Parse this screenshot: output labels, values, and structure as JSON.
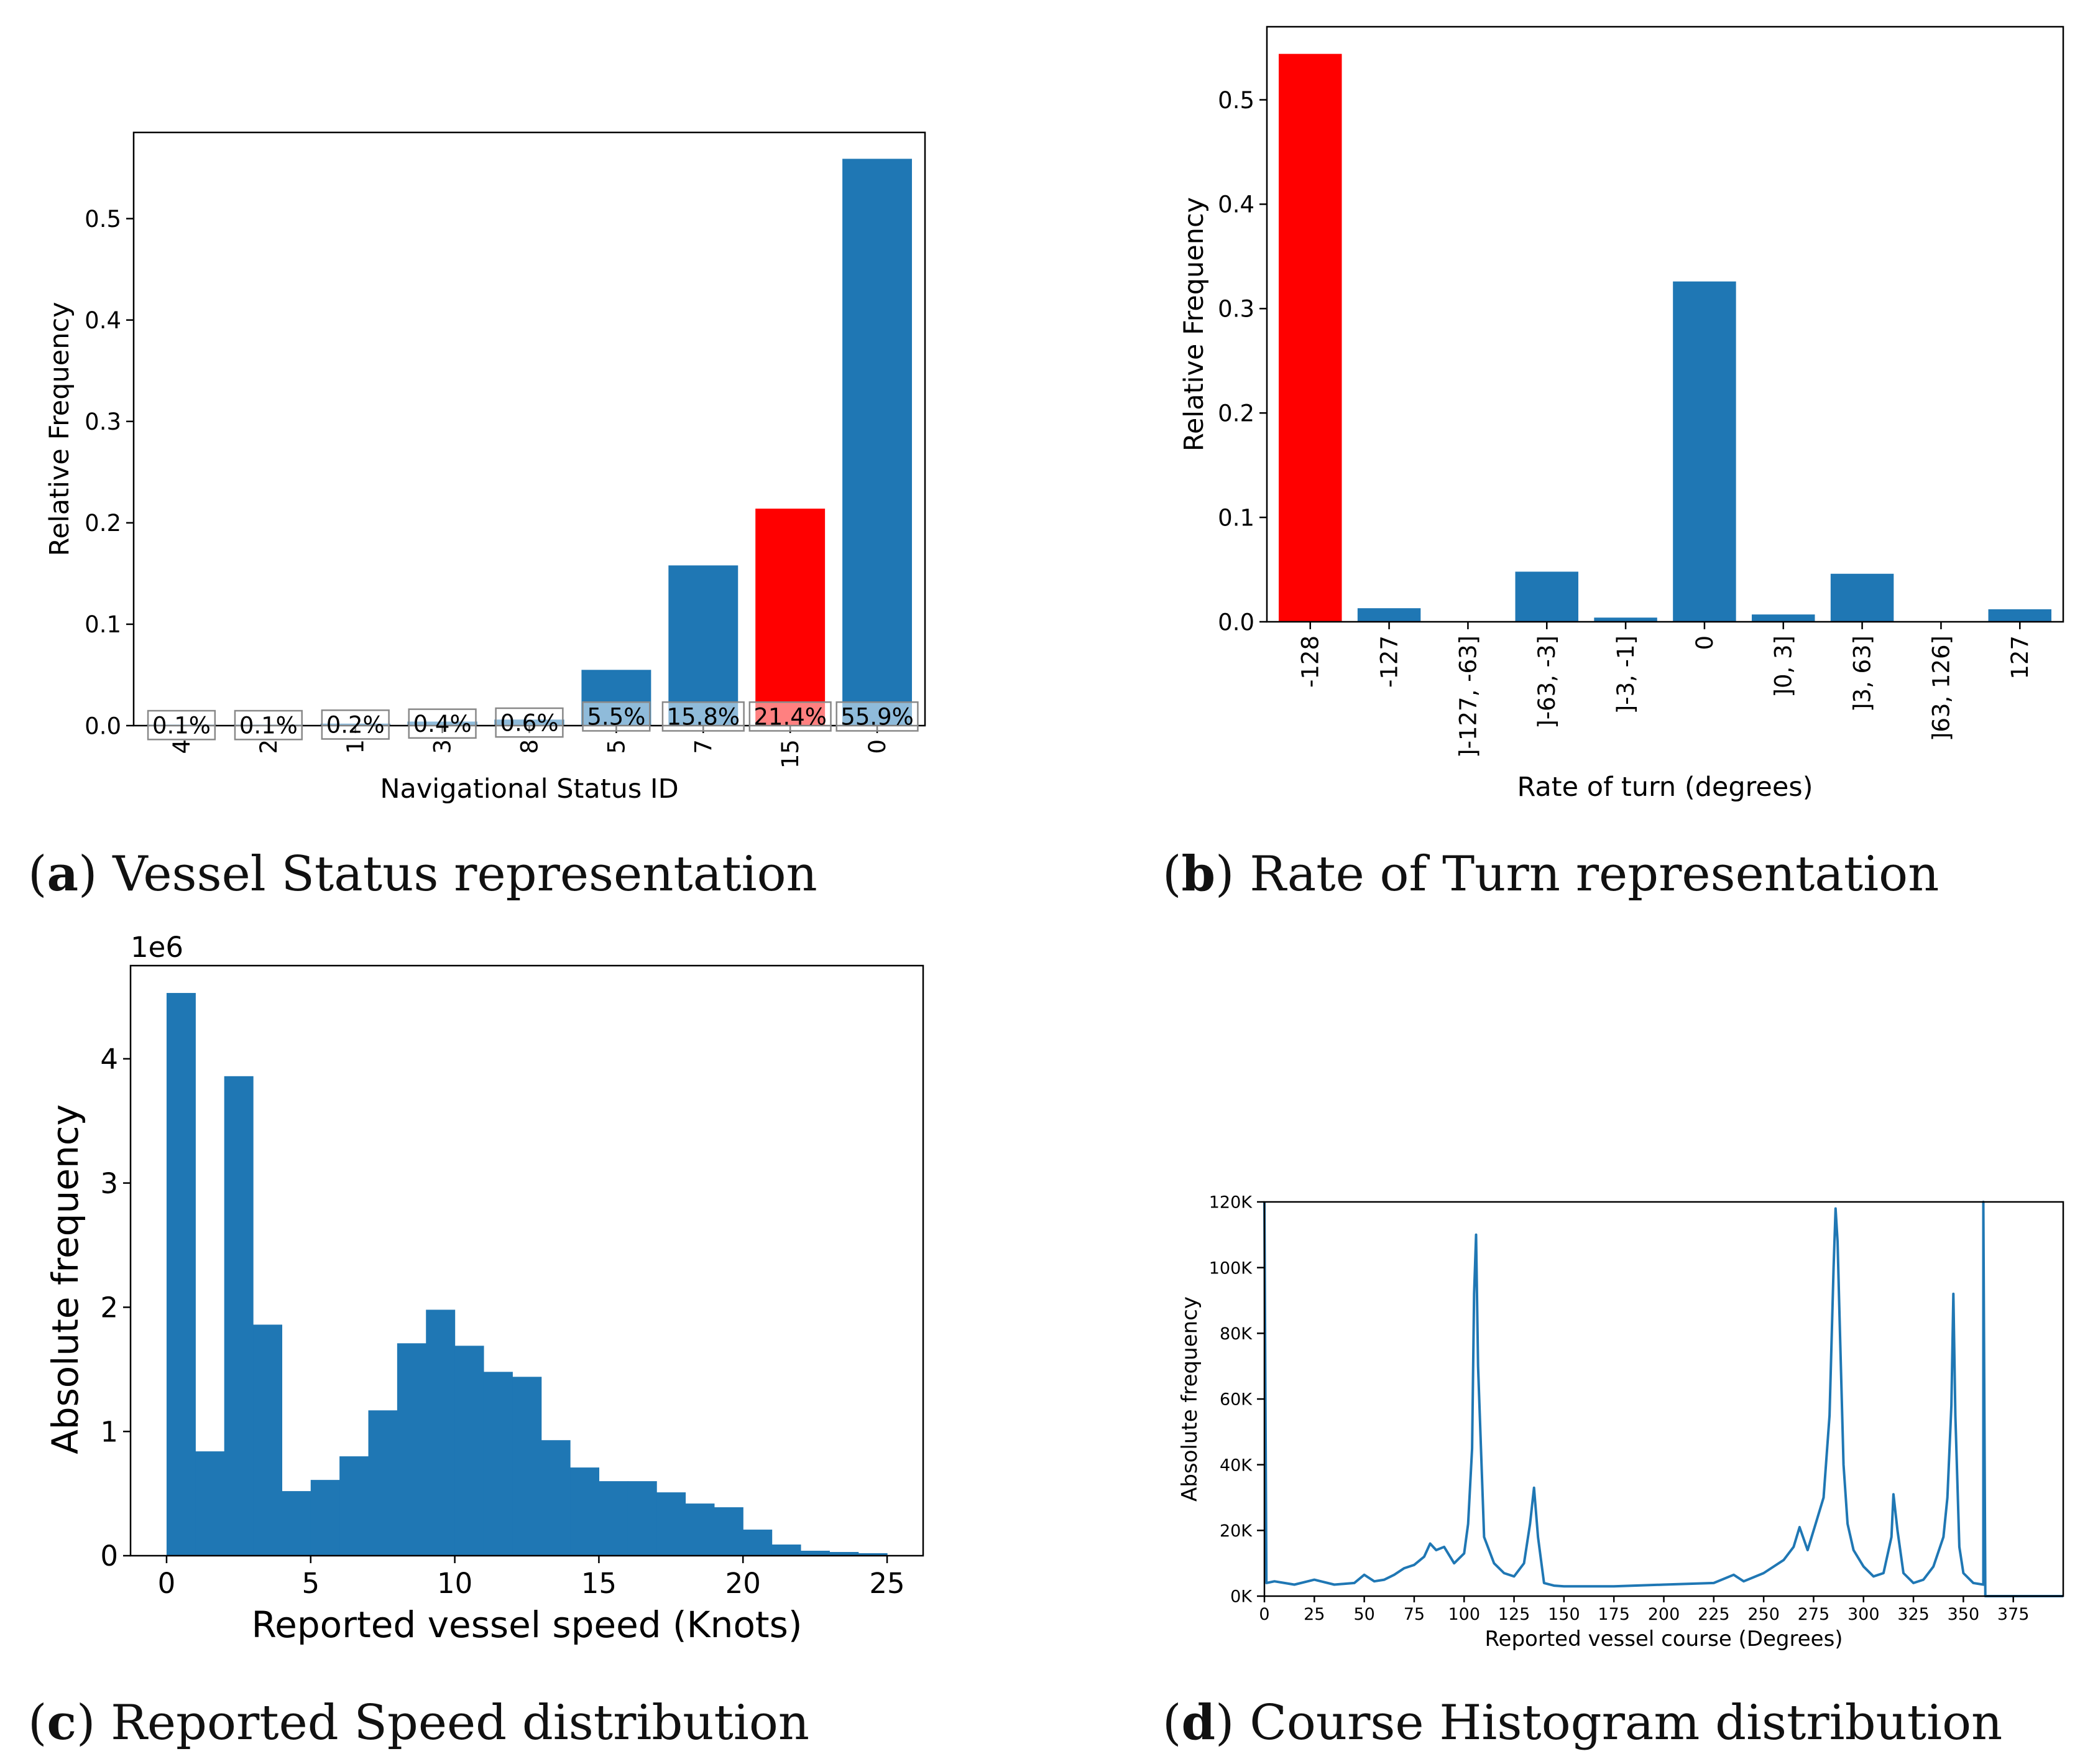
{
  "colors": {
    "bar": "#1f77b4",
    "highlight": "#ff0000",
    "label_box_bg": "#ffffff",
    "label_box_border": "#888888"
  },
  "captions": {
    "a": {
      "letter": "a",
      "text": " Vessel Status representation"
    },
    "b": {
      "letter": "b",
      "text": " Rate of Turn representation"
    },
    "c": {
      "letter": "c",
      "text": " Reported Speed distribution"
    },
    "d": {
      "letter": "d",
      "text": " Course Histogram distribution"
    }
  },
  "chart_data": [
    {
      "id": "a",
      "type": "bar",
      "xlabel": "Navigational Status ID",
      "ylabel": "Relative Frequency",
      "ylim": [
        0,
        0.585
      ],
      "yticks": [
        0.0,
        0.1,
        0.2,
        0.3,
        0.4,
        0.5
      ],
      "ytick_labels": [
        "0.0",
        "0.1",
        "0.2",
        "0.3",
        "0.4",
        "0.5"
      ],
      "categories": [
        "4",
        "2",
        "1",
        "3",
        "8",
        "5",
        "7",
        "15",
        "0"
      ],
      "values": [
        0.001,
        0.001,
        0.002,
        0.004,
        0.006,
        0.055,
        0.158,
        0.214,
        0.559
      ],
      "labels": [
        "0.1%",
        "0.1%",
        "0.2%",
        "0.4%",
        "0.6%",
        "5.5%",
        "15.8%",
        "21.4%",
        "55.9%"
      ],
      "highlight": [
        7
      ]
    },
    {
      "id": "b",
      "type": "bar",
      "xlabel": "Rate of turn (degrees)",
      "ylabel": "Relative Frequency",
      "ylim": [
        0,
        0.57
      ],
      "yticks": [
        0.0,
        0.1,
        0.2,
        0.3,
        0.4,
        0.5
      ],
      "ytick_labels": [
        "0.0",
        "0.1",
        "0.2",
        "0.3",
        "0.4",
        "0.5"
      ],
      "categories": [
        "-128",
        "-127",
        "]-127, -63]",
        "]-63, -3]",
        "]-3, -1]",
        "0",
        "]0, 3]",
        "]3, 63]",
        "]63, 126]",
        "127"
      ],
      "values": [
        0.544,
        0.013,
        0.0,
        0.048,
        0.004,
        0.326,
        0.007,
        0.046,
        0.0,
        0.012
      ],
      "highlight": [
        0
      ]
    },
    {
      "id": "c",
      "type": "bar",
      "histogram": true,
      "xlabel": "Reported vessel speed (Knots)",
      "ylabel": "Absolute frequency",
      "offset_text": "1e6",
      "xlim": [
        -1.25,
        26.25
      ],
      "ylim": [
        0,
        4.75
      ],
      "xticks": [
        0,
        5,
        10,
        15,
        20,
        25
      ],
      "xtick_labels": [
        "0",
        "5",
        "10",
        "15",
        "20",
        "25"
      ],
      "yticks": [
        0,
        1,
        2,
        3,
        4
      ],
      "ytick_labels": [
        "0",
        "1",
        "2",
        "3",
        "4"
      ],
      "bin_edges": [
        0,
        1,
        2,
        3,
        4,
        5,
        6,
        7,
        8,
        9,
        10,
        11,
        12,
        13,
        14,
        15,
        16,
        17,
        18,
        19,
        20,
        21,
        22,
        23,
        24,
        25
      ],
      "values": [
        4.53,
        0.84,
        3.86,
        1.86,
        0.52,
        0.61,
        0.8,
        1.17,
        1.71,
        1.98,
        1.69,
        1.48,
        1.44,
        0.93,
        0.71,
        0.6,
        0.6,
        0.51,
        0.42,
        0.39,
        0.21,
        0.09,
        0.04,
        0.03,
        0.02
      ]
    },
    {
      "id": "d",
      "type": "line",
      "xlabel": "Reported vessel course (Degrees)",
      "ylabel": "Absolute frequency",
      "xlim": [
        0,
        400
      ],
      "ylim": [
        0,
        120000
      ],
      "xticks": [
        0,
        25,
        50,
        75,
        100,
        125,
        150,
        175,
        200,
        225,
        250,
        275,
        300,
        325,
        350,
        375
      ],
      "xtick_labels": [
        "0",
        "25",
        "50",
        "75",
        "100",
        "125",
        "150",
        "175",
        "200",
        "225",
        "250",
        "275",
        "300",
        "325",
        "350",
        "375"
      ],
      "yticks": [
        0,
        20000,
        40000,
        60000,
        80000,
        100000,
        120000
      ],
      "ytick_labels": [
        "0K",
        "20K",
        "40K",
        "60K",
        "80K",
        "100K",
        "120K"
      ],
      "x": [
        0,
        1,
        5,
        15,
        25,
        35,
        45,
        50,
        55,
        60,
        65,
        70,
        75,
        80,
        83,
        86,
        90,
        95,
        100,
        102,
        104,
        105,
        106,
        107,
        110,
        115,
        120,
        125,
        130,
        133,
        135,
        137,
        140,
        145,
        150,
        175,
        200,
        225,
        235,
        240,
        250,
        260,
        265,
        268,
        272,
        276,
        280,
        283,
        285,
        286,
        287,
        288,
        290,
        292,
        295,
        300,
        305,
        310,
        314,
        315,
        317,
        320,
        325,
        330,
        335,
        340,
        342,
        344,
        345,
        346,
        348,
        350,
        355,
        360,
        360,
        361,
        400
      ],
      "y": [
        120000,
        4000,
        4500,
        3500,
        5000,
        3500,
        4000,
        6500,
        4500,
        5000,
        6500,
        8500,
        9500,
        12000,
        16000,
        14000,
        15000,
        10000,
        13000,
        22000,
        45000,
        92000,
        110000,
        70000,
        18000,
        10000,
        7000,
        6000,
        10000,
        22000,
        33000,
        18000,
        4000,
        3200,
        3000,
        3000,
        3500,
        4000,
        6500,
        4500,
        7000,
        11000,
        15000,
        21000,
        14000,
        22000,
        30000,
        55000,
        100000,
        118000,
        108000,
        85000,
        40000,
        22000,
        14000,
        9000,
        6000,
        7000,
        18000,
        31000,
        20000,
        7000,
        4000,
        5000,
        9000,
        18000,
        30000,
        58000,
        92000,
        55000,
        15000,
        7000,
        4000,
        3500,
        120000,
        0,
        0
      ]
    }
  ]
}
